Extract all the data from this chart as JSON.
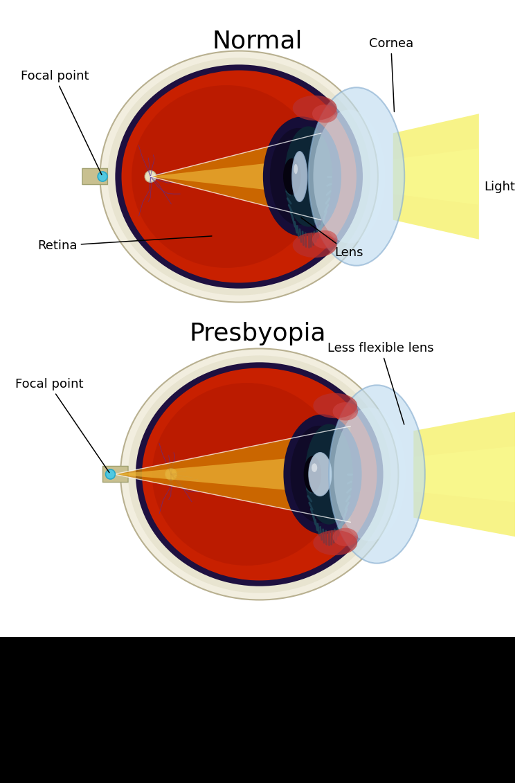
{
  "title_normal": "Normal",
  "title_presbyopia": "Presbyopia",
  "title_fontsize": 26,
  "label_fontsize": 13,
  "bg_color": "#ffffff",
  "labels_normal": {
    "focal_point": "Focal point",
    "cornea": "Cornea",
    "light": "Light",
    "retina": "Retina",
    "lens": "Lens"
  },
  "labels_presbyopia": {
    "focal_point": "Focal point",
    "less_flexible_lens": "Less flexible lens"
  }
}
